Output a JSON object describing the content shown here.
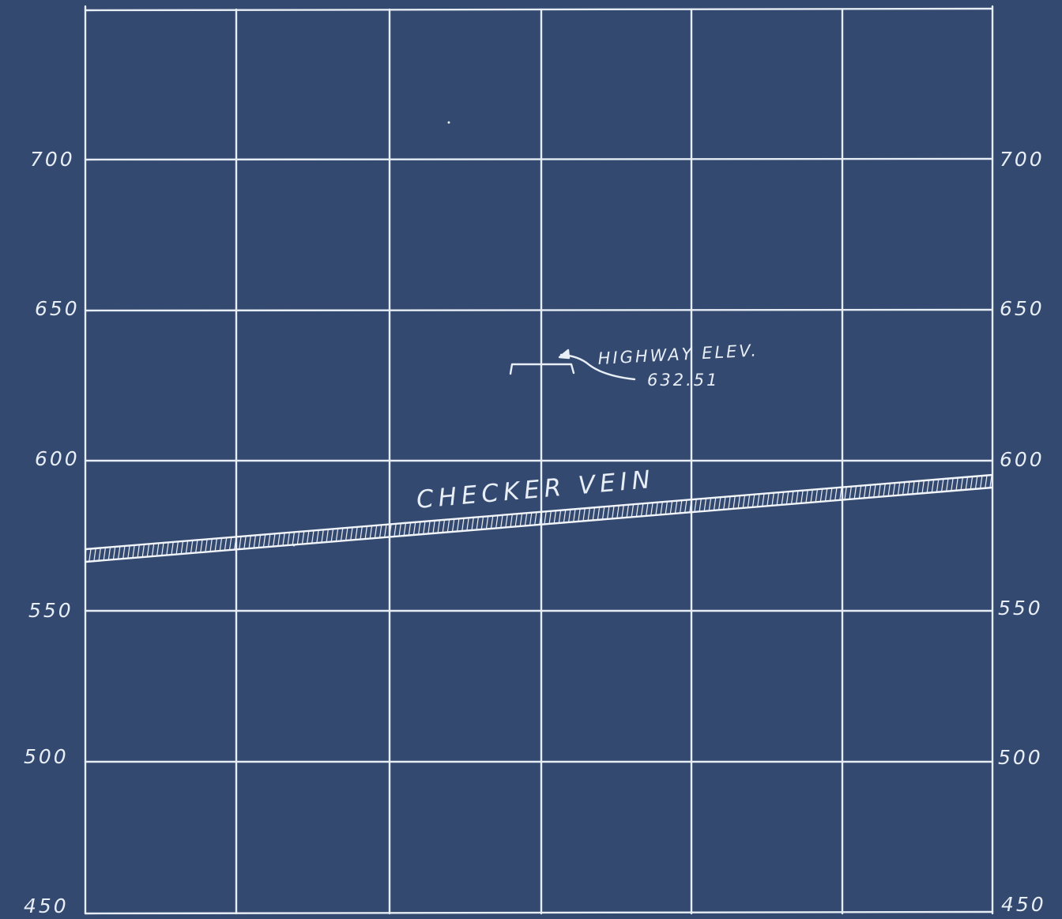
{
  "diagram": {
    "left_axis_labels": [
      "700",
      "650",
      "600",
      "550",
      "500",
      "450"
    ],
    "right_axis_labels": [
      "700",
      "650",
      "600",
      "550",
      "500",
      "450"
    ],
    "vein_label": "CHECKER VEIN",
    "highway_label_line1": "HIGHWAY ELEV.",
    "highway_label_line2": "632.51",
    "colors": {
      "background": "#34496f",
      "chalk": "#e8eef6"
    }
  }
}
